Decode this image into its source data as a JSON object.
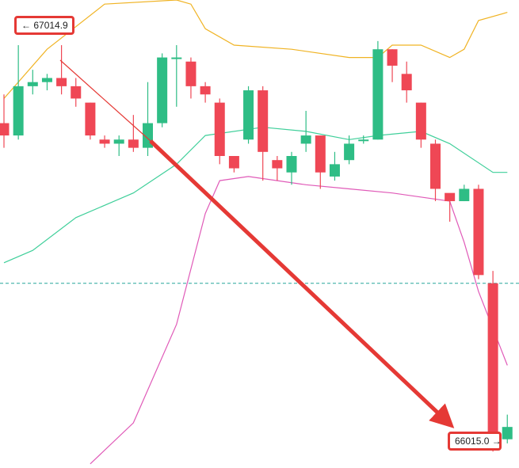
{
  "chart_data": {
    "type": "candlestick",
    "title": "",
    "y_range": [
      65990,
      67130
    ],
    "candles": [
      {
        "o": 66830,
        "h": 66900,
        "l": 66770,
        "c": 66800
      },
      {
        "o": 66800,
        "h": 67020,
        "l": 66790,
        "c": 66920
      },
      {
        "o": 66920,
        "h": 66960,
        "l": 66900,
        "c": 66930
      },
      {
        "o": 66930,
        "h": 66950,
        "l": 66910,
        "c": 66940
      },
      {
        "o": 66940,
        "h": 67020,
        "l": 66900,
        "c": 66920
      },
      {
        "o": 66920,
        "h": 66940,
        "l": 66870,
        "c": 66890
      },
      {
        "o": 66880,
        "h": 66880,
        "l": 66790,
        "c": 66800
      },
      {
        "o": 66790,
        "h": 66800,
        "l": 66770,
        "c": 66780
      },
      {
        "o": 66780,
        "h": 66800,
        "l": 66750,
        "c": 66790
      },
      {
        "o": 66790,
        "h": 66850,
        "l": 66760,
        "c": 66770
      },
      {
        "o": 66770,
        "h": 66930,
        "l": 66750,
        "c": 66830
      },
      {
        "o": 66830,
        "h": 67000,
        "l": 66820,
        "c": 66990
      },
      {
        "o": 66990,
        "h": 67020,
        "l": 66870,
        "c": 66990
      },
      {
        "o": 66980,
        "h": 66990,
        "l": 66890,
        "c": 66920
      },
      {
        "o": 66920,
        "h": 66930,
        "l": 66880,
        "c": 66900
      },
      {
        "o": 66880,
        "h": 66890,
        "l": 66730,
        "c": 66750
      },
      {
        "o": 66750,
        "h": 66750,
        "l": 66710,
        "c": 66720
      },
      {
        "o": 66790,
        "h": 66920,
        "l": 66780,
        "c": 66910
      },
      {
        "o": 66910,
        "h": 66920,
        "l": 66690,
        "c": 66760
      },
      {
        "o": 66740,
        "h": 66750,
        "l": 66690,
        "c": 66720
      },
      {
        "o": 66710,
        "h": 66760,
        "l": 66680,
        "c": 66750
      },
      {
        "o": 66780,
        "h": 66860,
        "l": 66760,
        "c": 66800
      },
      {
        "o": 66800,
        "h": 66800,
        "l": 66670,
        "c": 66710
      },
      {
        "o": 66700,
        "h": 66760,
        "l": 66690,
        "c": 66730
      },
      {
        "o": 66740,
        "h": 66800,
        "l": 66730,
        "c": 66780
      },
      {
        "o": 66790,
        "h": 66800,
        "l": 66780,
        "c": 66790
      },
      {
        "o": 66790,
        "h": 67030,
        "l": 66790,
        "c": 67010
      },
      {
        "o": 67010,
        "h": 67010,
        "l": 66930,
        "c": 66970
      },
      {
        "o": 66950,
        "h": 66980,
        "l": 66880,
        "c": 66910
      },
      {
        "o": 66880,
        "h": 66880,
        "l": 66770,
        "c": 66790
      },
      {
        "o": 66780,
        "h": 66790,
        "l": 66640,
        "c": 66670
      },
      {
        "o": 66660,
        "h": 66650,
        "l": 66590,
        "c": 66640
      },
      {
        "o": 66640,
        "h": 66680,
        "l": 66640,
        "c": 66670
      },
      {
        "o": 66670,
        "h": 66680,
        "l": 66450,
        "c": 66460
      },
      {
        "o": 66440,
        "h": 66470,
        "l": 66030,
        "c": 66060
      },
      {
        "o": 66060,
        "h": 66120,
        "l": 66050,
        "c": 66090
      }
    ],
    "bands": {
      "upper": [
        [
          0,
          66890
        ],
        [
          3,
          67010
        ],
        [
          7,
          67120
        ],
        [
          12,
          67130
        ],
        [
          13,
          67120
        ],
        [
          14,
          67060
        ],
        [
          16,
          67020
        ],
        [
          20,
          67010
        ],
        [
          24,
          66990
        ],
        [
          26,
          66990
        ],
        [
          27,
          67020
        ],
        [
          29,
          67020
        ],
        [
          31,
          66990
        ],
        [
          32,
          67010
        ],
        [
          33,
          67080
        ],
        [
          35,
          67100
        ]
      ],
      "middle": [
        [
          0,
          66490
        ],
        [
          2,
          66520
        ],
        [
          5,
          66600
        ],
        [
          9,
          66660
        ],
        [
          12,
          66730
        ],
        [
          14,
          66800
        ],
        [
          18,
          66820
        ],
        [
          21,
          66810
        ],
        [
          24,
          66790
        ],
        [
          26,
          66800
        ],
        [
          29,
          66810
        ],
        [
          31,
          66780
        ],
        [
          34,
          66710
        ],
        [
          35,
          66710
        ]
      ],
      "lower": [
        [
          6,
          66000
        ],
        [
          9,
          66100
        ],
        [
          12,
          66340
        ],
        [
          14,
          66610
        ],
        [
          15,
          66690
        ],
        [
          17,
          66700
        ],
        [
          21,
          66680
        ],
        [
          24,
          66670
        ],
        [
          27,
          66660
        ],
        [
          31,
          66640
        ],
        [
          32,
          66540
        ],
        [
          33,
          66420
        ],
        [
          35,
          66240
        ]
      ]
    },
    "reference_line": 66440,
    "annotations": {
      "high": {
        "label": "67014.9",
        "arrow": "←"
      },
      "low": {
        "label": "66015.0",
        "arrow": "→"
      }
    },
    "colors": {
      "up": "#2ebd85",
      "down": "#ef4755",
      "upper_band": "#f0b323",
      "middle_band": "#3fcf9a",
      "lower_band": "#e05ab8",
      "reference_line": "#26a69a",
      "annotation": "#e53935"
    }
  }
}
